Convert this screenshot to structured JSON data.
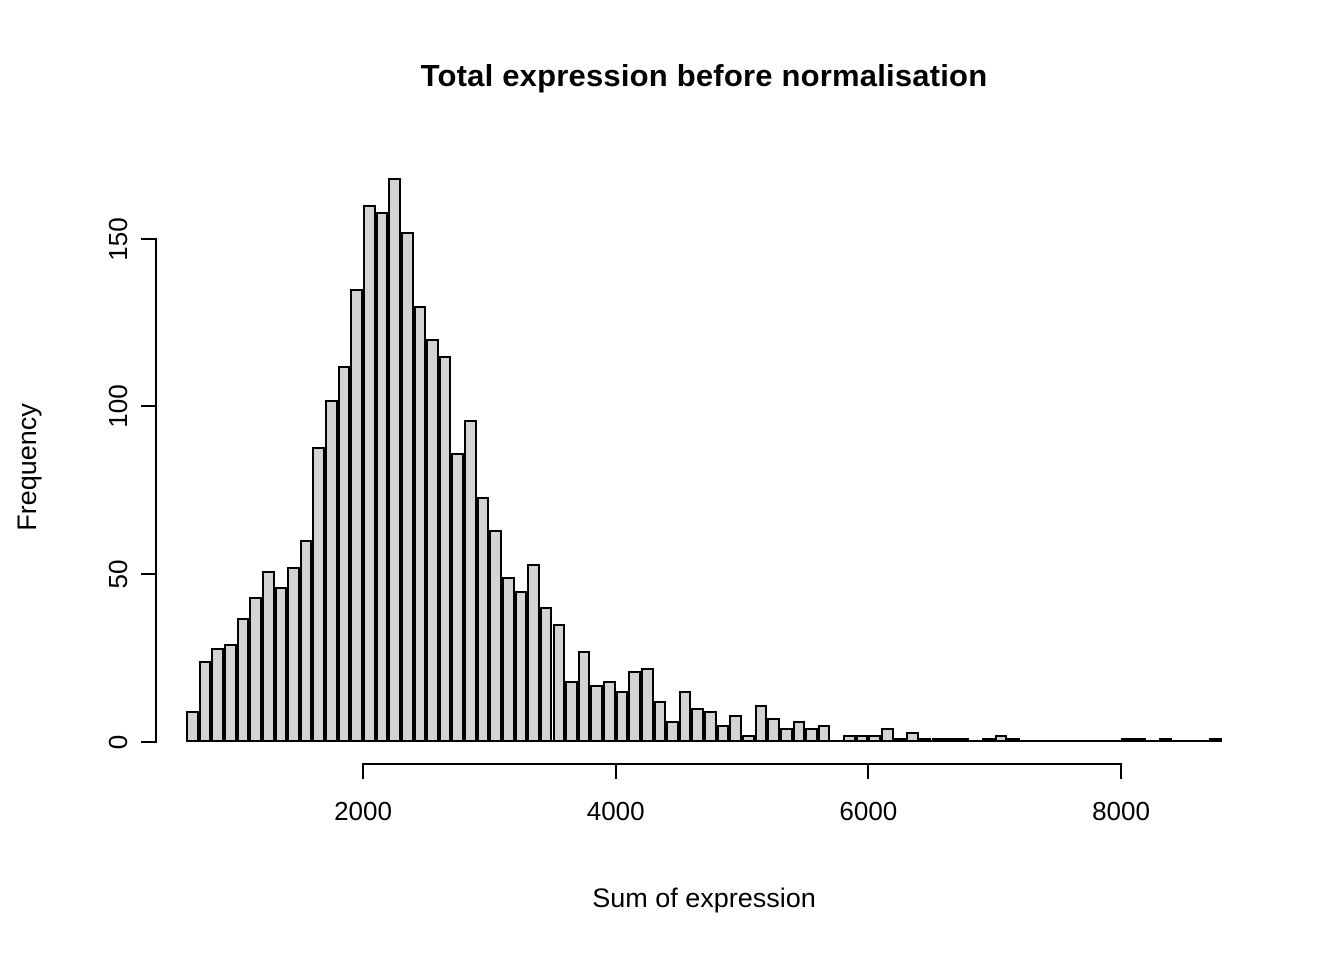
{
  "chart_data": {
    "type": "bar",
    "title": "Total expression before normalisation",
    "xlabel": "Sum of expression",
    "ylabel": "Frequency",
    "bin_start": 600,
    "bin_width": 100,
    "frequencies": [
      9,
      24,
      28,
      29,
      37,
      43,
      51,
      46,
      52,
      60,
      88,
      102,
      112,
      135,
      160,
      158,
      168,
      152,
      130,
      120,
      115,
      86,
      96,
      73,
      63,
      49,
      45,
      53,
      40,
      35,
      18,
      27,
      17,
      18,
      15,
      21,
      22,
      12,
      6,
      15,
      10,
      9,
      5,
      8,
      2,
      11,
      7,
      4,
      6,
      4,
      5,
      0,
      2,
      2,
      2,
      4,
      1,
      3,
      1,
      1,
      1,
      1,
      0,
      1,
      2,
      1,
      0,
      0,
      0,
      0,
      0,
      0,
      0,
      0,
      1,
      1,
      0,
      1,
      0,
      0,
      0,
      1
    ],
    "x_ticks": [
      2000,
      4000,
      6000,
      8000
    ],
    "y_ticks": [
      0,
      50,
      100,
      150
    ],
    "xlim": [
      600,
      8800
    ],
    "ylim": [
      0,
      168
    ],
    "grid": false,
    "legend": "none",
    "bar_fill": "#d3d3d3",
    "bar_border": "#000000",
    "text_color": "#000000"
  }
}
